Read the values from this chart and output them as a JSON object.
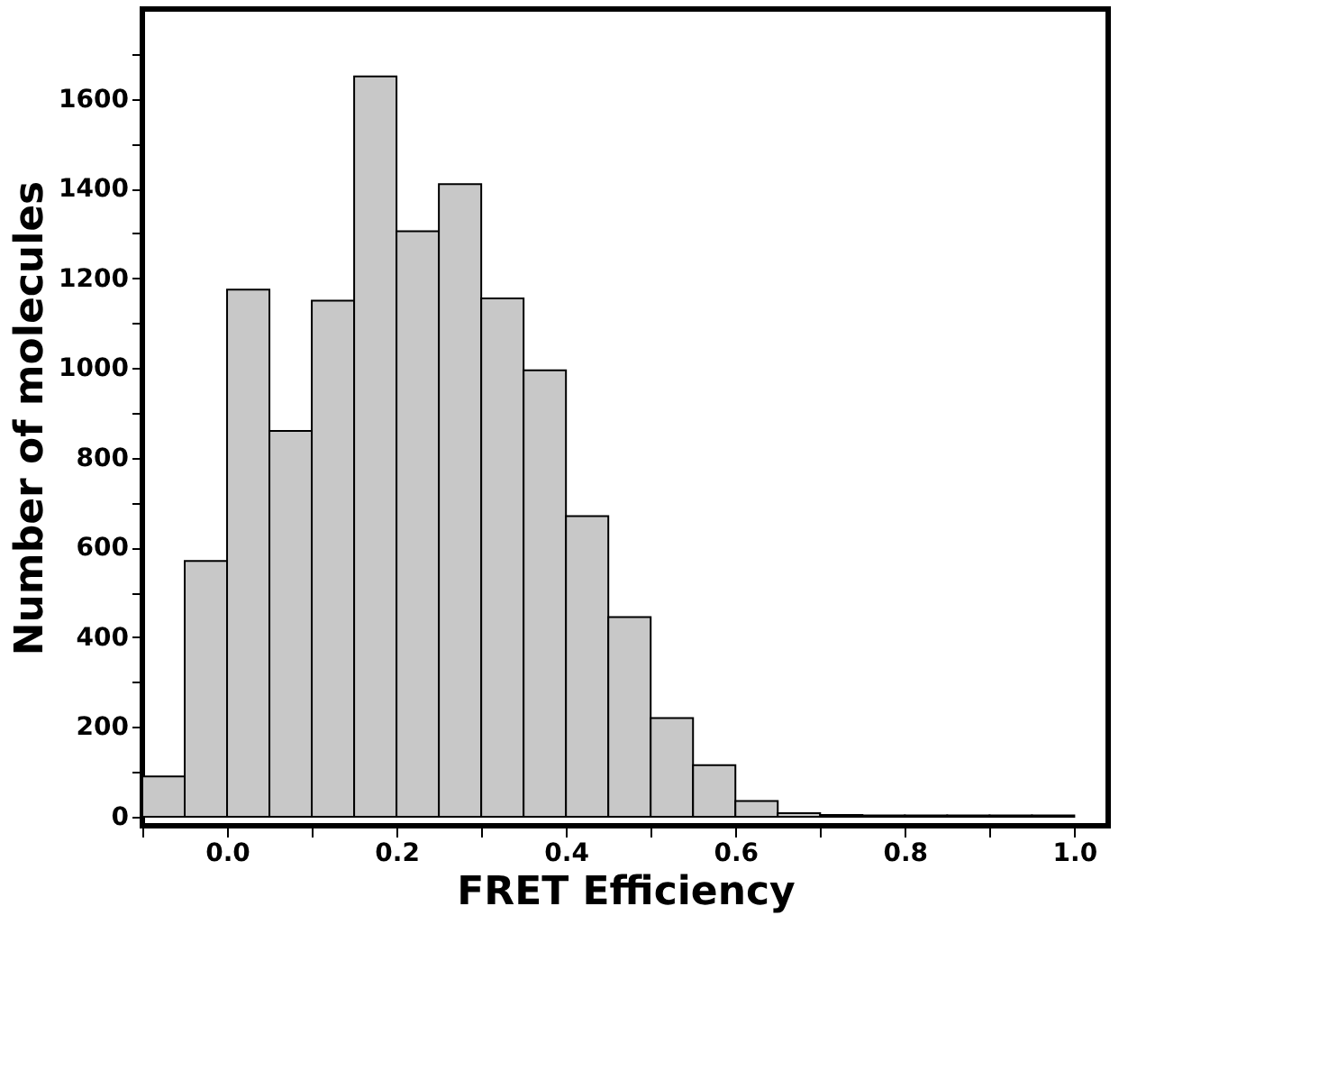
{
  "chart_data": {
    "type": "histogram",
    "xlabel": "FRET Efficiency",
    "ylabel": "Number of molecules",
    "bins": [
      -0.1,
      -0.05,
      0.0,
      0.05,
      0.1,
      0.15,
      0.2,
      0.25,
      0.3,
      0.35,
      0.4,
      0.45,
      0.5,
      0.55,
      0.6,
      0.65,
      0.7,
      0.75,
      0.8,
      0.85,
      0.9,
      0.95,
      1.0
    ],
    "values": [
      90,
      570,
      1175,
      860,
      1150,
      1650,
      1305,
      1410,
      1155,
      995,
      670,
      445,
      220,
      115,
      35,
      8,
      4,
      3,
      3,
      3,
      3,
      3
    ],
    "color": "#c8c8c8",
    "xlim": [
      -0.1,
      1.04
    ],
    "ylim": [
      -20,
      1800
    ],
    "xticks": [
      {
        "value": -0.1,
        "label": null
      },
      {
        "value": 0.0,
        "label": "0.0"
      },
      {
        "value": 0.1,
        "label": null
      },
      {
        "value": 0.2,
        "label": "0.2"
      },
      {
        "value": 0.3,
        "label": null
      },
      {
        "value": 0.4,
        "label": "0.4"
      },
      {
        "value": 0.5,
        "label": null
      },
      {
        "value": 0.6,
        "label": "0.6"
      },
      {
        "value": 0.7,
        "label": null
      },
      {
        "value": 0.8,
        "label": "0.8"
      },
      {
        "value": 0.9,
        "label": null
      },
      {
        "value": 1.0,
        "label": "1.0"
      }
    ],
    "yticks": [
      0,
      {
        "value": 100,
        "label": null
      },
      200,
      {
        "value": 300,
        "label": null
      },
      400,
      {
        "value": 500,
        "label": null
      },
      600,
      {
        "value": 700,
        "label": null
      },
      800,
      {
        "value": 900,
        "label": null
      },
      1000,
      {
        "value": 1100,
        "label": null
      },
      1200,
      {
        "value": 1300,
        "label": null
      },
      1400,
      {
        "value": 1500,
        "label": null
      },
      1600,
      {
        "value": 1700,
        "label": null
      }
    ],
    "grid": false
  }
}
